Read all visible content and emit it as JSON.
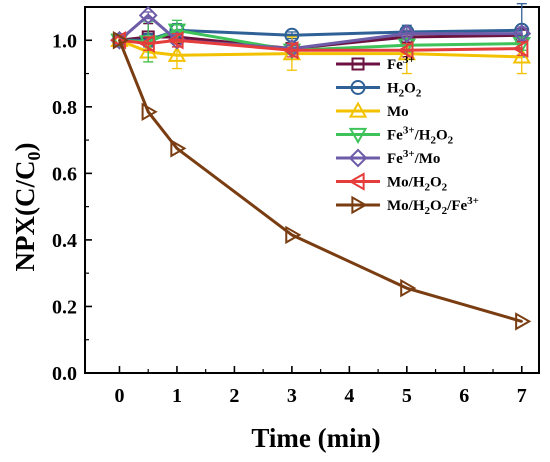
{
  "chart_data": {
    "type": "line",
    "title": "",
    "xlabel": "Time (min)",
    "ylabel_main": "NPX(C/C",
    "ylabel_sub": "0",
    "ylabel_close": ")",
    "xlim": [
      -0.6,
      7.3
    ],
    "ylim": [
      0.0,
      1.1
    ],
    "x_ticks": [
      0,
      1,
      2,
      3,
      4,
      5,
      6,
      7
    ],
    "x_tick_labels": [
      "0",
      "1",
      "2",
      "3",
      "4",
      "5",
      "6",
      "7"
    ],
    "y_ticks": [
      0.0,
      0.2,
      0.4,
      0.6,
      0.8,
      1.0
    ],
    "y_tick_labels": [
      "0.0",
      "0.2",
      "0.4",
      "0.6",
      "0.8",
      "1.0"
    ],
    "legend_position": "right",
    "grid": false,
    "series": [
      {
        "name": "Fe3+",
        "legend": [
          {
            "t": "Fe"
          },
          {
            "t": "3+",
            "s": "sup"
          }
        ],
        "color": "#6b1240",
        "marker": "square",
        "x": [
          0,
          0.5,
          1,
          3,
          5,
          7
        ],
        "y": [
          1.0,
          1.01,
          1.01,
          0.975,
          1.01,
          1.015
        ],
        "err": [
          0.01,
          0.04,
          0.02,
          0.01,
          0.02,
          0.02
        ]
      },
      {
        "name": "H2O2",
        "legend": [
          {
            "t": "H"
          },
          {
            "t": "2",
            "s": "sub"
          },
          {
            "t": "O"
          },
          {
            "t": "2",
            "s": "sub"
          }
        ],
        "color": "#2f6196",
        "marker": "circle",
        "x": [
          0,
          0.5,
          1,
          3,
          5,
          7
        ],
        "y": [
          1.0,
          1.0,
          1.03,
          1.015,
          1.025,
          1.03
        ],
        "err": [
          0.01,
          0.02,
          0.02,
          0.01,
          0.02,
          0.08
        ]
      },
      {
        "name": "Mo",
        "legend": [
          {
            "t": "Mo"
          }
        ],
        "color": "#f2c200",
        "marker": "triangle-up",
        "x": [
          0,
          0.5,
          1,
          3,
          5,
          7
        ],
        "y": [
          1.0,
          0.965,
          0.955,
          0.96,
          0.96,
          0.95
        ],
        "err": [
          0.01,
          0.03,
          0.04,
          0.05,
          0.06,
          0.05
        ]
      },
      {
        "name": "Fe3+/H2O2",
        "legend": [
          {
            "t": "Fe"
          },
          {
            "t": "3+",
            "s": "sup"
          },
          {
            "t": "/H"
          },
          {
            "t": "2",
            "s": "sub"
          },
          {
            "t": "O"
          },
          {
            "t": "2",
            "s": "sub"
          }
        ],
        "color": "#3ec25a",
        "marker": "triangle-down",
        "x": [
          0,
          0.5,
          1,
          3,
          5,
          7
        ],
        "y": [
          1.0,
          0.995,
          1.03,
          0.97,
          0.985,
          0.99
        ],
        "err": [
          0.01,
          0.06,
          0.03,
          0.01,
          0.02,
          0.02
        ]
      },
      {
        "name": "Fe3+/Mo",
        "legend": [
          {
            "t": "Fe"
          },
          {
            "t": "3+",
            "s": "sup"
          },
          {
            "t": "/Mo"
          }
        ],
        "color": "#6e5ca8",
        "marker": "diamond",
        "x": [
          0,
          0.5,
          1,
          3,
          5,
          7
        ],
        "y": [
          1.0,
          1.075,
          1.0,
          0.975,
          1.02,
          1.02
        ],
        "err": [
          0.01,
          0.01,
          0.02,
          0.01,
          0.01,
          0.02
        ]
      },
      {
        "name": "Mo/H2O2",
        "legend": [
          {
            "t": "Mo/H"
          },
          {
            "t": "2",
            "s": "sub"
          },
          {
            "t": "O"
          },
          {
            "t": "2",
            "s": "sub"
          }
        ],
        "color": "#e53c3c",
        "marker": "triangle-left",
        "x": [
          0,
          0.5,
          1,
          3,
          5,
          7
        ],
        "y": [
          1.0,
          0.99,
          1.0,
          0.97,
          0.97,
          0.975
        ],
        "err": [
          0.01,
          0.02,
          0.02,
          0.02,
          0.02,
          0.02
        ]
      },
      {
        "name": "Mo/H2O2/Fe3+",
        "legend": [
          {
            "t": "Mo/H"
          },
          {
            "t": "2",
            "s": "sub"
          },
          {
            "t": "O"
          },
          {
            "t": "2",
            "s": "sub"
          },
          {
            "t": "/Fe"
          },
          {
            "t": "3+",
            "s": "sup"
          }
        ],
        "color": "#7a3d12",
        "marker": "triangle-right",
        "x": [
          0,
          0.5,
          1,
          3,
          5,
          7
        ],
        "y": [
          1.0,
          0.785,
          0.675,
          0.415,
          0.255,
          0.155
        ],
        "err": [
          0,
          0,
          0,
          0,
          0,
          0
        ]
      }
    ]
  }
}
